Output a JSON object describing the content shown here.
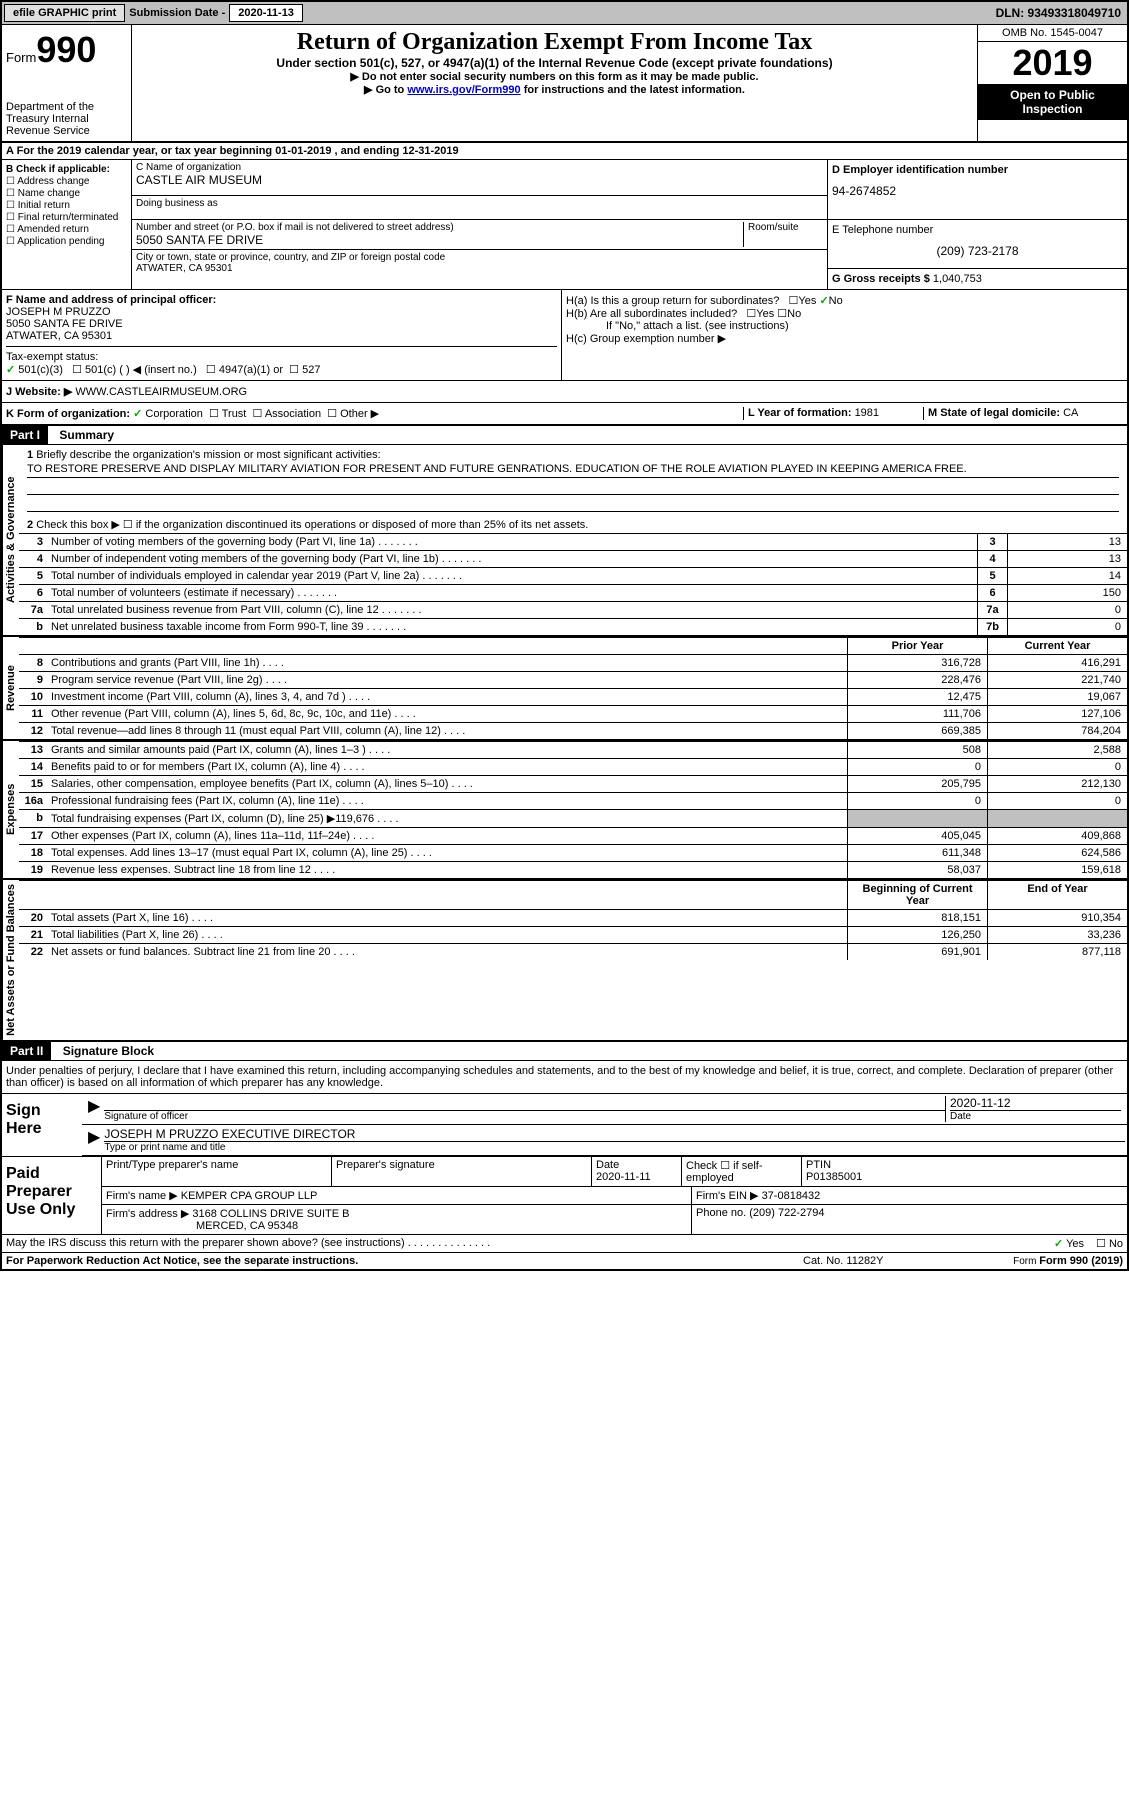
{
  "topbar": {
    "efile": "efile GRAPHIC print",
    "sub_label": "Submission Date - ",
    "sub_date": "2020-11-13",
    "dln": "DLN: 93493318049710"
  },
  "header": {
    "form_label": "Form",
    "form_num": "990",
    "title": "Return of Organization Exempt From Income Tax",
    "sub1": "Under section 501(c), 527, or 4947(a)(1) of the Internal Revenue Code (except private foundations)",
    "sub2": "▶ Do not enter social security numbers on this form as it may be made public.",
    "sub3_pre": "▶ Go to ",
    "sub3_link": "www.irs.gov/Form990",
    "sub3_post": " for instructions and the latest information.",
    "omb": "OMB No. 1545-0047",
    "year": "2019",
    "inspection": "Open to Public Inspection",
    "dept": "Department of the Treasury\nInternal Revenue Service"
  },
  "line_a": "A For the 2019 calendar year, or tax year beginning 01-01-2019    , and ending 12-31-2019",
  "section_b": {
    "label": "B Check if applicable:",
    "opts": [
      "Address change",
      "Name change",
      "Initial return",
      "Final return/terminated",
      "Amended return",
      "Application pending"
    ]
  },
  "org": {
    "name_label": "C Name of organization",
    "name": "CASTLE AIR MUSEUM",
    "dba_label": "Doing business as",
    "addr_label": "Number and street (or P.O. box if mail is not delivered to street address)",
    "room_label": "Room/suite",
    "addr": "5050 SANTA FE DRIVE",
    "city_label": "City or town, state or province, country, and ZIP or foreign postal code",
    "city": "ATWATER, CA  95301"
  },
  "right": {
    "ein_label": "D Employer identification number",
    "ein": "94-2674852",
    "phone_label": "E Telephone number",
    "phone": "(209) 723-2178",
    "receipts_label": "G Gross receipts $ ",
    "receipts": "1,040,753"
  },
  "f": {
    "label": "F  Name and address of principal officer:",
    "name": "JOSEPH M PRUZZO",
    "addr": "5050 SANTA FE DRIVE",
    "city": "ATWATER, CA  95301"
  },
  "h": {
    "a": "H(a)  Is this a group return for subordinates?",
    "b": "H(b)  Are all subordinates included?",
    "c_note": "If \"No,\" attach a list. (see instructions)",
    "c": "H(c)  Group exemption number ▶",
    "yes": "Yes",
    "no": "No"
  },
  "tax_status": {
    "label": "Tax-exempt status:",
    "opt1": "501(c)(3)",
    "opt2": "501(c) (  ) ◀ (insert no.)",
    "opt3": "4947(a)(1) or",
    "opt4": "527"
  },
  "j": {
    "label": "J     Website: ▶",
    "url": "WWW.CASTLEAIRMUSEUM.ORG"
  },
  "k": {
    "label": "K Form of organization:",
    "opt1": "Corporation",
    "opt2": "Trust",
    "opt3": "Association",
    "opt4": "Other ▶",
    "l_label": "L Year of formation: ",
    "l_val": "1981",
    "m_label": "M State of legal domicile: ",
    "m_val": "CA"
  },
  "part1": {
    "part": "Part I",
    "title": "Summary"
  },
  "line1": {
    "num": "1",
    "label": "Briefly describe the organization's mission or most significant activities:",
    "text": "TO RESTORE PRESERVE AND DISPLAY MILITARY AVIATION FOR PRESENT AND FUTURE GENRATIONS. EDUCATION OF THE ROLE AVIATION PLAYED IN KEEPING AMERICA FREE."
  },
  "line2": {
    "num": "2",
    "text": "Check this box ▶ ☐ if the organization discontinued its operations or disposed of more than 25% of its net assets."
  },
  "gov_rows": [
    {
      "n": "3",
      "d": "Number of voting members of the governing body (Part VI, line 1a)",
      "b": "3",
      "v": "13"
    },
    {
      "n": "4",
      "d": "Number of independent voting members of the governing body (Part VI, line 1b)",
      "b": "4",
      "v": "13"
    },
    {
      "n": "5",
      "d": "Total number of individuals employed in calendar year 2019 (Part V, line 2a)",
      "b": "5",
      "v": "14"
    },
    {
      "n": "6",
      "d": "Total number of volunteers (estimate if necessary)",
      "b": "6",
      "v": "150"
    },
    {
      "n": "7a",
      "d": "Total unrelated business revenue from Part VIII, column (C), line 12",
      "b": "7a",
      "v": "0"
    },
    {
      "n": "b",
      "d": "Net unrelated business taxable income from Form 990-T, line 39",
      "b": "7b",
      "v": "0"
    }
  ],
  "col_headers": {
    "prior": "Prior Year",
    "current": "Current Year"
  },
  "rev_rows": [
    {
      "n": "8",
      "d": "Contributions and grants (Part VIII, line 1h)",
      "p": "316,728",
      "c": "416,291"
    },
    {
      "n": "9",
      "d": "Program service revenue (Part VIII, line 2g)",
      "p": "228,476",
      "c": "221,740"
    },
    {
      "n": "10",
      "d": "Investment income (Part VIII, column (A), lines 3, 4, and 7d )",
      "p": "12,475",
      "c": "19,067"
    },
    {
      "n": "11",
      "d": "Other revenue (Part VIII, column (A), lines 5, 6d, 8c, 9c, 10c, and 11e)",
      "p": "111,706",
      "c": "127,106"
    },
    {
      "n": "12",
      "d": "Total revenue—add lines 8 through 11 (must equal Part VIII, column (A), line 12)",
      "p": "669,385",
      "c": "784,204"
    }
  ],
  "exp_rows": [
    {
      "n": "13",
      "d": "Grants and similar amounts paid (Part IX, column (A), lines 1–3 )",
      "p": "508",
      "c": "2,588"
    },
    {
      "n": "14",
      "d": "Benefits paid to or for members (Part IX, column (A), line 4)",
      "p": "0",
      "c": "0"
    },
    {
      "n": "15",
      "d": "Salaries, other compensation, employee benefits (Part IX, column (A), lines 5–10)",
      "p": "205,795",
      "c": "212,130"
    },
    {
      "n": "16a",
      "d": "Professional fundraising fees (Part IX, column (A), line 11e)",
      "p": "0",
      "c": "0"
    },
    {
      "n": "b",
      "d": "Total fundraising expenses (Part IX, column (D), line 25) ▶119,676",
      "p": "",
      "c": "",
      "shaded": true
    },
    {
      "n": "17",
      "d": "Other expenses (Part IX, column (A), lines 11a–11d, 11f–24e)",
      "p": "405,045",
      "c": "409,868"
    },
    {
      "n": "18",
      "d": "Total expenses. Add lines 13–17 (must equal Part IX, column (A), line 25)",
      "p": "611,348",
      "c": "624,586"
    },
    {
      "n": "19",
      "d": "Revenue less expenses. Subtract line 18 from line 12",
      "p": "58,037",
      "c": "159,618"
    }
  ],
  "net_header": {
    "begin": "Beginning of Current Year",
    "end": "End of Year"
  },
  "net_rows": [
    {
      "n": "20",
      "d": "Total assets (Part X, line 16)",
      "p": "818,151",
      "c": "910,354"
    },
    {
      "n": "21",
      "d": "Total liabilities (Part X, line 26)",
      "p": "126,250",
      "c": "33,236"
    },
    {
      "n": "22",
      "d": "Net assets or fund balances. Subtract line 21 from line 20",
      "p": "691,901",
      "c": "877,118"
    }
  ],
  "vlabels": {
    "gov": "Activities & Governance",
    "rev": "Revenue",
    "exp": "Expenses",
    "net": "Net Assets or Fund Balances"
  },
  "part2": {
    "part": "Part II",
    "title": "Signature Block",
    "penalties": "Under penalties of perjury, I declare that I have examined this return, including accompanying schedules and statements, and to the best of my knowledge and belief, it is true, correct, and complete. Declaration of preparer (other than officer) is based on all information of which preparer has any knowledge."
  },
  "sign": {
    "label": "Sign Here",
    "sig_label": "Signature of officer",
    "date_label": "Date",
    "date": "2020-11-12",
    "name": "JOSEPH M PRUZZO  EXECUTIVE DIRECTOR",
    "name_label": "Type or print name and title"
  },
  "paid": {
    "label": "Paid Preparer Use Only",
    "prep_name_label": "Print/Type preparer's name",
    "prep_sig_label": "Preparer's signature",
    "date_label": "Date",
    "date": "2020-11-11",
    "check_label": "Check ☐  if self-employed",
    "ptin_label": "PTIN",
    "ptin": "P01385001",
    "firm_name_label": "Firm's name    ▶",
    "firm_name": "KEMPER CPA GROUP LLP",
    "firm_ein_label": "Firm's EIN ▶",
    "firm_ein": "37-0818432",
    "firm_addr_label": "Firm's address ▶",
    "firm_addr": "3168 COLLINS DRIVE SUITE B",
    "firm_city": "MERCED, CA  95348",
    "firm_phone_label": "Phone no. ",
    "firm_phone": "(209) 722-2794"
  },
  "discuss": {
    "q": "May the IRS discuss this return with the preparer shown above? (see instructions)",
    "yes": "Yes",
    "no": "No"
  },
  "footer": {
    "left": "For Paperwork Reduction Act Notice, see the separate instructions.",
    "mid": "Cat. No. 11282Y",
    "right": "Form 990 (2019)"
  }
}
